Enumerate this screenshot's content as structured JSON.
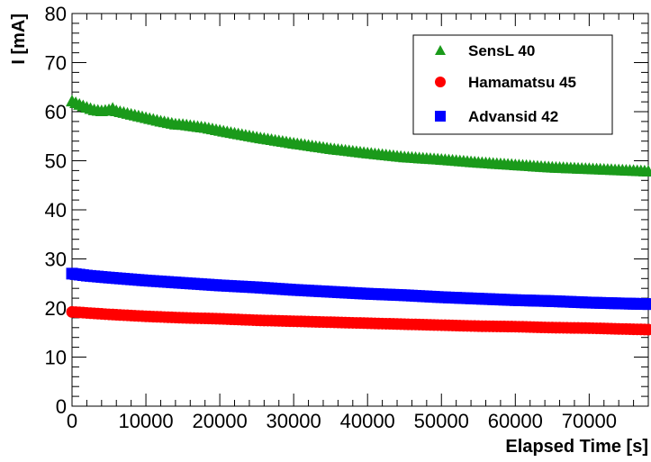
{
  "chart_data": {
    "type": "scatter",
    "title": "",
    "xlabel": "Elapsed Time [s]",
    "ylabel": "I [mA]",
    "xlim": [
      0,
      78000
    ],
    "ylim": [
      0,
      80
    ],
    "xticks": [
      0,
      10000,
      20000,
      30000,
      40000,
      50000,
      60000,
      70000
    ],
    "xtick_labels": [
      "0",
      "10000",
      "20000",
      "30000",
      "40000",
      "50000",
      "60000",
      "70000"
    ],
    "yticks": [
      0,
      10,
      20,
      30,
      40,
      50,
      60,
      70,
      80
    ],
    "ytick_labels": [
      "0",
      "10",
      "20",
      "30",
      "40",
      "50",
      "60",
      "70",
      "80"
    ],
    "grid": false,
    "legend_position": "top-right",
    "series": [
      {
        "name": "SensL 40",
        "marker": "triangle",
        "color": "#1a9a1a",
        "x": [
          0,
          1000,
          2000,
          3000,
          4000,
          5000,
          5500,
          6000,
          8000,
          10000,
          12000,
          14000,
          15000,
          16000,
          18000,
          20000,
          25000,
          30000,
          35000,
          40000,
          45000,
          50000,
          55000,
          60000,
          65000,
          70000,
          75000,
          78000
        ],
        "y": [
          62,
          61.3,
          60.7,
          60.2,
          60,
          60.2,
          60.5,
          60,
          59.3,
          58.6,
          57.9,
          57.3,
          57.2,
          57,
          56.6,
          56,
          54.6,
          53.4,
          52.3,
          51.4,
          50.6,
          50.1,
          49.5,
          49,
          48.5,
          48.2,
          47.9,
          47.7
        ]
      },
      {
        "name": "Hamamatsu 45",
        "marker": "circle",
        "color": "#ff0000",
        "x": [
          0,
          2000,
          5000,
          10000,
          15000,
          20000,
          25000,
          30000,
          35000,
          40000,
          45000,
          50000,
          55000,
          60000,
          65000,
          70000,
          75000,
          78000
        ],
        "y": [
          19.2,
          19.0,
          18.7,
          18.3,
          18.0,
          17.8,
          17.5,
          17.3,
          17.1,
          16.9,
          16.7,
          16.5,
          16.3,
          16.2,
          16.0,
          15.9,
          15.7,
          15.6
        ]
      },
      {
        "name": "Advansid 42",
        "marker": "square",
        "color": "#0000ff",
        "x": [
          0,
          2000,
          5000,
          10000,
          15000,
          20000,
          25000,
          30000,
          35000,
          40000,
          45000,
          50000,
          55000,
          60000,
          65000,
          70000,
          75000,
          78000
        ],
        "y": [
          27,
          26.6,
          26.2,
          25.6,
          25.1,
          24.6,
          24.2,
          23.7,
          23.3,
          22.9,
          22.6,
          22.2,
          21.9,
          21.6,
          21.4,
          21.1,
          20.9,
          20.8
        ]
      }
    ]
  }
}
